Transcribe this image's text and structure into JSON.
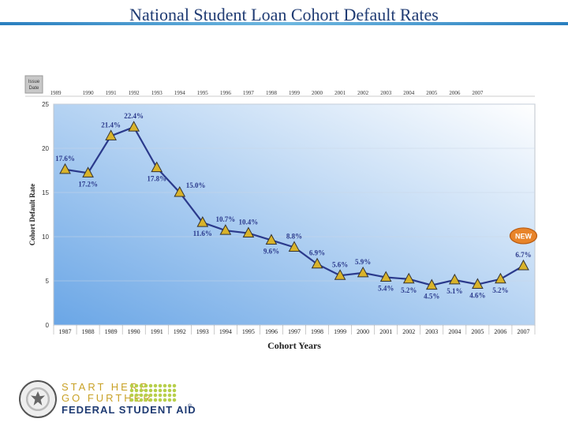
{
  "header": {
    "title": "National Student Loan Cohort Default Rates"
  },
  "chart_data": {
    "type": "line",
    "xlabel": "Cohort Years",
    "ylabel": "Cohort Default Rate",
    "ylim": [
      0,
      25
    ],
    "yticks": [
      0,
      5,
      10,
      15,
      20,
      25
    ],
    "grid": true,
    "issue_date_label": "Issue Date",
    "issue_years": [
      "1989",
      "1990",
      "1991",
      "1992",
      "1993",
      "1994",
      "1995",
      "1996",
      "1997",
      "1998",
      "1999",
      "2000",
      "2001",
      "2002",
      "2003",
      "2004",
      "2005",
      "2006",
      "2007"
    ],
    "categories": [
      "1987",
      "1988",
      "1989",
      "1990",
      "1991",
      "1992",
      "1993",
      "1994",
      "1995",
      "1996",
      "1997",
      "1998",
      "1999",
      "2000",
      "2001",
      "2002",
      "2003",
      "2004",
      "2005",
      "2006",
      "2007"
    ],
    "series": [
      {
        "name": "Cohort Default Rate",
        "values": [
          17.6,
          17.2,
          21.4,
          22.4,
          17.8,
          15.0,
          11.6,
          10.7,
          10.4,
          9.6,
          8.8,
          6.9,
          5.6,
          5.9,
          5.4,
          5.2,
          4.5,
          5.1,
          4.6,
          5.2,
          6.7
        ],
        "labels": [
          "17.6%",
          "17.2%",
          "21.4%",
          "22.4%",
          "17.8%",
          "15.0%",
          "11.6%",
          "10.7%",
          "10.4%",
          "9.6%",
          "8.8%",
          "6.9%",
          "5.6%",
          "5.9%",
          "5.4%",
          "5.2%",
          "4.5%",
          "5.1%",
          "4.6%",
          "5.2%",
          "6.7%"
        ],
        "label_pos": [
          "above",
          "below",
          "above",
          "above",
          "below",
          "right",
          "below",
          "above",
          "above",
          "below",
          "above",
          "above",
          "above",
          "above",
          "below",
          "below",
          "below",
          "below",
          "below",
          "below",
          "above"
        ]
      }
    ],
    "badge": "NEW",
    "colors": {
      "line": "#2b3a8c",
      "marker": "#d9b32a",
      "marker_edge": "#333333",
      "label": "#2b3a8c",
      "plot_top": "#ffffff",
      "plot_bottom": "#6aa6e6",
      "frame": "#bfc5cc",
      "badge_fill": "#e8842a"
    }
  },
  "footer": {
    "logo_line1": "START HERE",
    "logo_line2": "GO FURTHER",
    "logo_line3": "FEDERAL STUDENT AID",
    "registered": "®"
  }
}
